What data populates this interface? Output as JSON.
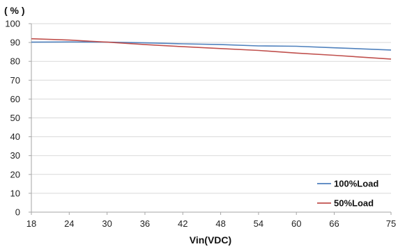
{
  "chart_data": {
    "type": "line",
    "title": "",
    "y_unit_label": "( % )",
    "xlabel": "Vin(VDC)",
    "ylabel": "",
    "x": [
      18,
      24,
      30,
      36,
      42,
      48,
      54,
      60,
      66,
      75
    ],
    "xlim": [
      18,
      75
    ],
    "ylim": [
      0,
      100
    ],
    "x_ticks": [
      "18",
      "24",
      "30",
      "36",
      "42",
      "48",
      "54",
      "60",
      "66",
      "75"
    ],
    "y_ticks": [
      "0",
      "10",
      "20",
      "30",
      "40",
      "50",
      "60",
      "70",
      "80",
      "90",
      "100"
    ],
    "grid": "horizontal",
    "legend_position": "bottom-right",
    "series": [
      {
        "name": "100%Load",
        "color": "#4f81bd",
        "values": [
          90.2,
          90.3,
          90.2,
          89.8,
          89.3,
          88.9,
          88.2,
          88.0,
          87.2,
          86.0
        ]
      },
      {
        "name": "50%Load",
        "color": "#c0504d",
        "values": [
          92.0,
          91.3,
          90.2,
          88.9,
          87.8,
          86.8,
          85.8,
          84.4,
          83.2,
          81.2
        ]
      }
    ]
  }
}
